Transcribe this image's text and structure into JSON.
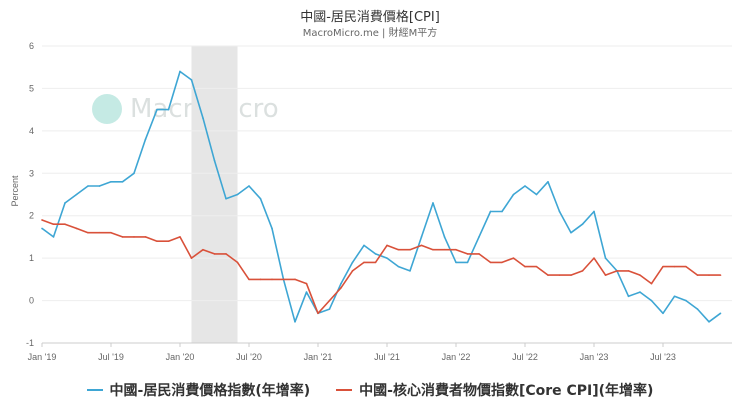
{
  "title": "中國-居民消費價格[CPI]",
  "subtitle": "MacroMicro.me | 財經M平方",
  "watermark": "MacroMicro",
  "colors": {
    "cpi": "#3ea6d4",
    "core": "#d9513a",
    "shade": "#e6e6e6",
    "grid": "#eeeeee"
  },
  "chart_data": {
    "type": "line",
    "ylabel": "Percent",
    "ylim": [
      -1,
      6
    ],
    "yticks": [
      -1,
      0,
      1,
      2,
      3,
      4,
      5,
      6
    ],
    "xticks": [
      "Jan '19",
      "Jul '19",
      "Jan '20",
      "Jul '20",
      "Jan '21",
      "Jul '21",
      "Jan '22",
      "Jul '22",
      "Jan '23",
      "Jul '23"
    ],
    "shaded_period": [
      "2020-02",
      "2020-06"
    ],
    "x": [
      "2019-01",
      "2019-02",
      "2019-03",
      "2019-04",
      "2019-05",
      "2019-06",
      "2019-07",
      "2019-08",
      "2019-09",
      "2019-10",
      "2019-11",
      "2019-12",
      "2020-01",
      "2020-02",
      "2020-03",
      "2020-04",
      "2020-05",
      "2020-06",
      "2020-07",
      "2020-08",
      "2020-09",
      "2020-10",
      "2020-11",
      "2020-12",
      "2021-01",
      "2021-02",
      "2021-03",
      "2021-04",
      "2021-05",
      "2021-06",
      "2021-07",
      "2021-08",
      "2021-09",
      "2021-10",
      "2021-11",
      "2021-12",
      "2022-01",
      "2022-02",
      "2022-03",
      "2022-04",
      "2022-05",
      "2022-06",
      "2022-07",
      "2022-08",
      "2022-09",
      "2022-10",
      "2022-11",
      "2022-12",
      "2023-01",
      "2023-02",
      "2023-03",
      "2023-04",
      "2023-05",
      "2023-06",
      "2023-07",
      "2023-08",
      "2023-09",
      "2023-10",
      "2023-11",
      "2023-12"
    ],
    "series": [
      {
        "name": "中國-居民消費價格指數(年增率)",
        "values": [
          1.7,
          1.5,
          2.3,
          2.5,
          2.7,
          2.7,
          2.8,
          2.8,
          3.0,
          3.8,
          4.5,
          4.5,
          5.4,
          5.2,
          4.3,
          3.3,
          2.4,
          2.5,
          2.7,
          2.4,
          1.7,
          0.5,
          -0.5,
          0.2,
          -0.3,
          -0.2,
          0.4,
          0.9,
          1.3,
          1.1,
          1.0,
          0.8,
          0.7,
          1.5,
          2.3,
          1.5,
          0.9,
          0.9,
          1.5,
          2.1,
          2.1,
          2.5,
          2.7,
          2.5,
          2.8,
          2.1,
          1.6,
          1.8,
          2.1,
          1.0,
          0.7,
          0.1,
          0.2,
          0.0,
          -0.3,
          0.1,
          0.0,
          -0.2,
          -0.5,
          -0.3
        ]
      },
      {
        "name": "中國-核心消費者物價指數[Core CPI](年增率)",
        "values": [
          1.9,
          1.8,
          1.8,
          1.7,
          1.6,
          1.6,
          1.6,
          1.5,
          1.5,
          1.5,
          1.4,
          1.4,
          1.5,
          1.0,
          1.2,
          1.1,
          1.1,
          0.9,
          0.5,
          0.5,
          0.5,
          0.5,
          0.5,
          0.4,
          -0.3,
          0.0,
          0.3,
          0.7,
          0.9,
          0.9,
          1.3,
          1.2,
          1.2,
          1.3,
          1.2,
          1.2,
          1.2,
          1.1,
          1.1,
          0.9,
          0.9,
          1.0,
          0.8,
          0.8,
          0.6,
          0.6,
          0.6,
          0.7,
          1.0,
          0.6,
          0.7,
          0.7,
          0.6,
          0.4,
          0.8,
          0.8,
          0.8,
          0.6,
          0.6,
          0.6
        ]
      }
    ]
  }
}
